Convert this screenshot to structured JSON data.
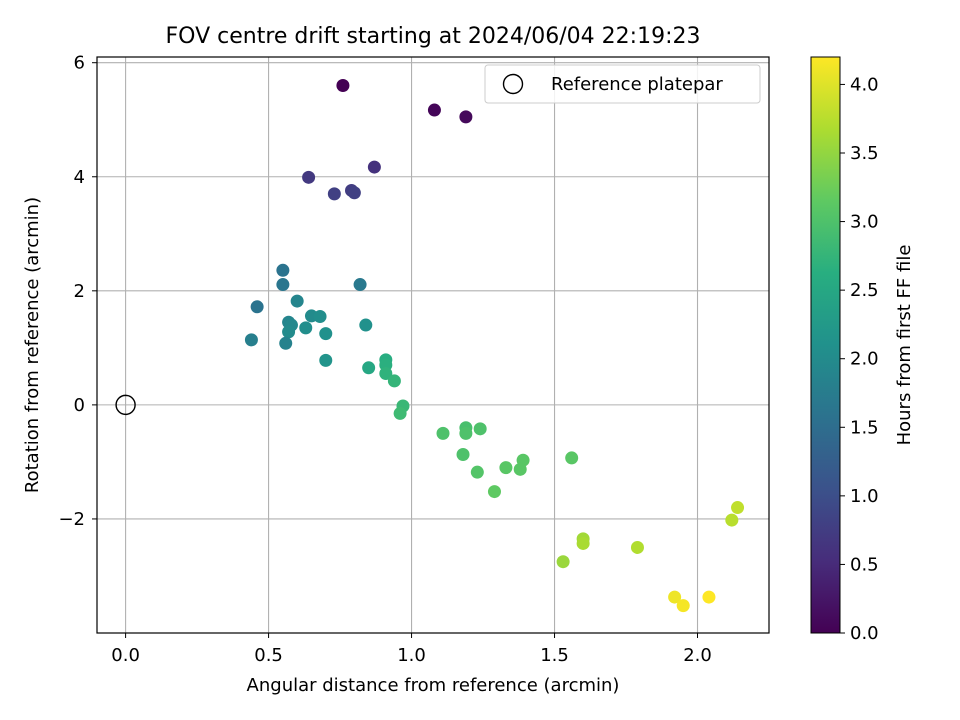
{
  "chart_data": {
    "type": "scatter",
    "title": "FOV centre drift starting at 2024/06/04 22:19:23",
    "xlabel": "Angular distance from reference (arcmin)",
    "ylabel": "Rotation from reference (arcmin)",
    "xlim": [
      -0.1,
      2.25
    ],
    "ylim": [
      -4.0,
      6.1
    ],
    "xticks": [
      0.0,
      0.5,
      1.0,
      1.5,
      2.0
    ],
    "xtick_labels": [
      "0.0",
      "0.5",
      "1.0",
      "1.5",
      "2.0"
    ],
    "yticks": [
      -2,
      0,
      2,
      4,
      6
    ],
    "ytick_labels": [
      "−2",
      "0",
      "2",
      "4",
      "6"
    ],
    "grid": true,
    "legend": {
      "placement": "top-right",
      "entries": [
        "Reference platepar"
      ]
    },
    "reference_point": {
      "label": "Reference platepar",
      "x": 0.0,
      "y": 0.0
    },
    "colorbar": {
      "label": "Hours from first FF file",
      "range": [
        0.0,
        4.2
      ],
      "ticks": [
        0.0,
        0.5,
        1.0,
        1.5,
        2.0,
        2.5,
        3.0,
        3.5,
        4.0
      ],
      "tick_labels": [
        "0.0",
        "0.5",
        "1.0",
        "1.5",
        "2.0",
        "2.5",
        "3.0",
        "3.5",
        "4.0"
      ],
      "colormap": "viridis"
    },
    "points": [
      {
        "x": 0.76,
        "y": 5.6,
        "c": 0.0
      },
      {
        "x": 1.08,
        "y": 5.17,
        "c": 0.05
      },
      {
        "x": 1.19,
        "y": 5.05,
        "c": 0.1
      },
      {
        "x": 0.87,
        "y": 4.17,
        "c": 0.6
      },
      {
        "x": 0.64,
        "y": 3.99,
        "c": 0.7
      },
      {
        "x": 0.73,
        "y": 3.7,
        "c": 0.8
      },
      {
        "x": 0.79,
        "y": 3.76,
        "c": 0.75
      },
      {
        "x": 0.8,
        "y": 3.72,
        "c": 0.8
      },
      {
        "x": 0.55,
        "y": 2.36,
        "c": 1.6
      },
      {
        "x": 0.55,
        "y": 2.11,
        "c": 1.65
      },
      {
        "x": 0.82,
        "y": 2.11,
        "c": 1.7
      },
      {
        "x": 0.46,
        "y": 1.72,
        "c": 1.6
      },
      {
        "x": 0.6,
        "y": 1.82,
        "c": 1.9
      },
      {
        "x": 0.65,
        "y": 1.56,
        "c": 2.0
      },
      {
        "x": 0.68,
        "y": 1.55,
        "c": 2.05
      },
      {
        "x": 0.57,
        "y": 1.45,
        "c": 1.9
      },
      {
        "x": 0.58,
        "y": 1.4,
        "c": 1.95
      },
      {
        "x": 0.57,
        "y": 1.28,
        "c": 2.0
      },
      {
        "x": 0.63,
        "y": 1.35,
        "c": 2.05
      },
      {
        "x": 0.7,
        "y": 1.25,
        "c": 2.1
      },
      {
        "x": 0.84,
        "y": 1.4,
        "c": 2.1
      },
      {
        "x": 0.44,
        "y": 1.14,
        "c": 1.8
      },
      {
        "x": 0.56,
        "y": 1.08,
        "c": 1.85
      },
      {
        "x": 0.7,
        "y": 0.78,
        "c": 2.15
      },
      {
        "x": 0.85,
        "y": 0.65,
        "c": 2.5
      },
      {
        "x": 0.91,
        "y": 0.79,
        "c": 2.6
      },
      {
        "x": 0.91,
        "y": 0.7,
        "c": 2.65
      },
      {
        "x": 0.91,
        "y": 0.55,
        "c": 2.7
      },
      {
        "x": 0.94,
        "y": 0.42,
        "c": 2.75
      },
      {
        "x": 0.97,
        "y": -0.02,
        "c": 2.8
      },
      {
        "x": 0.96,
        "y": -0.15,
        "c": 2.85
      },
      {
        "x": 1.11,
        "y": -0.5,
        "c": 3.0
      },
      {
        "x": 1.19,
        "y": -0.4,
        "c": 2.95
      },
      {
        "x": 1.19,
        "y": -0.5,
        "c": 3.0
      },
      {
        "x": 1.24,
        "y": -0.42,
        "c": 3.0
      },
      {
        "x": 1.18,
        "y": -0.87,
        "c": 3.0
      },
      {
        "x": 1.23,
        "y": -1.18,
        "c": 3.05
      },
      {
        "x": 1.33,
        "y": -1.1,
        "c": 3.1
      },
      {
        "x": 1.39,
        "y": -0.97,
        "c": 3.1
      },
      {
        "x": 1.38,
        "y": -1.13,
        "c": 3.1
      },
      {
        "x": 1.29,
        "y": -1.52,
        "c": 3.15
      },
      {
        "x": 1.56,
        "y": -0.93,
        "c": 3.1
      },
      {
        "x": 1.53,
        "y": -2.75,
        "c": 3.55
      },
      {
        "x": 1.6,
        "y": -2.35,
        "c": 3.6
      },
      {
        "x": 1.6,
        "y": -2.43,
        "c": 3.65
      },
      {
        "x": 1.79,
        "y": -2.5,
        "c": 3.7
      },
      {
        "x": 2.12,
        "y": -2.02,
        "c": 3.75
      },
      {
        "x": 2.14,
        "y": -1.8,
        "c": 3.8
      },
      {
        "x": 1.92,
        "y": -3.37,
        "c": 4.1
      },
      {
        "x": 1.95,
        "y": -3.52,
        "c": 4.15
      },
      {
        "x": 2.04,
        "y": -3.37,
        "c": 4.2
      }
    ]
  }
}
